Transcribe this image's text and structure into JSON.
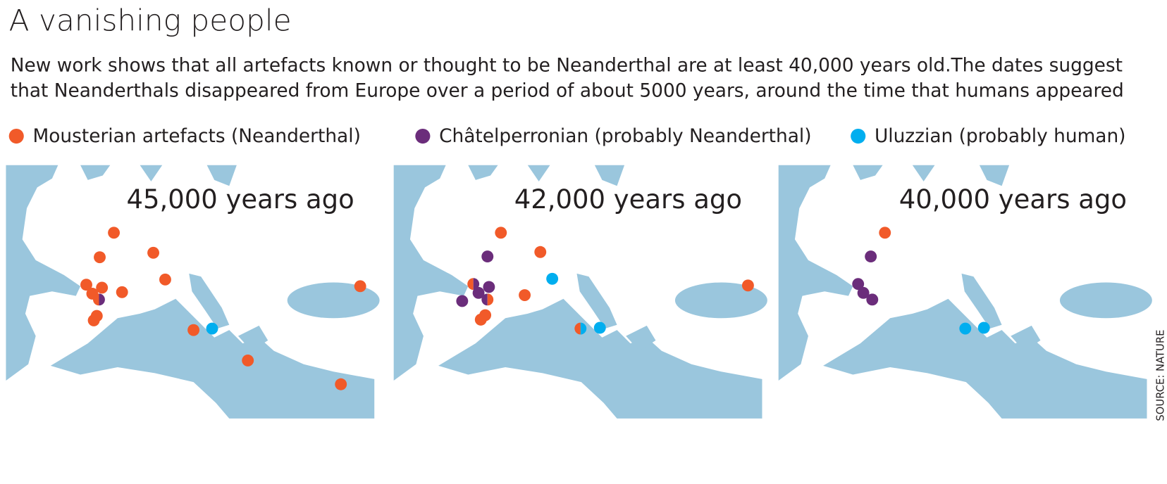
{
  "header": {
    "title": "A vanishing people",
    "subtitle_lines": [
      "New work shows that all artefacts known or thought to be Neanderthal are at least 40,000 years old.The dates suggest",
      "that Neanderthals disappeared from Europe over a period of about 5000 years, around the time that humans appeared"
    ]
  },
  "legend": [
    {
      "label": "Mousterian artefacts (Neanderthal)",
      "color": "#f15a29"
    },
    {
      "label": "Châtelperronian (probably Neanderthal)",
      "color": "#6b2d7b"
    },
    {
      "label": "Uluzzian (probably human)",
      "color": "#00aeef"
    }
  ],
  "panels": [
    {
      "label": "45,000 years ago"
    },
    {
      "label": "42,000 years ago"
    },
    {
      "label": "40,000 years ago"
    }
  ],
  "source": "SOURCE: NATURE"
}
